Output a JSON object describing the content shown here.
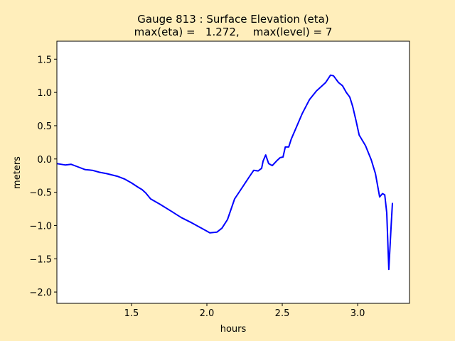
{
  "chart_data": {
    "type": "line",
    "title_line1": "Gauge 813 : Surface Elevation (eta)",
    "title_line2": "max(eta) =   1.272,    max(level) = 7",
    "xlabel": "hours",
    "ylabel": "meters",
    "xlim": [
      1.005,
      3.344
    ],
    "ylim": [
      -2.17,
      1.77
    ],
    "xticks": [
      1.5,
      2.0,
      2.5,
      3.0
    ],
    "xtick_labels": [
      "1.5",
      "2.0",
      "2.5",
      "3.0"
    ],
    "yticks": [
      1.5,
      1.0,
      0.5,
      0.0,
      -0.5,
      -1.0,
      -1.5,
      -2.0
    ],
    "ytick_labels": [
      "1.5",
      "1.0",
      "0.5",
      "0.0",
      "−0.5",
      "−1.0",
      "−1.5",
      "−2.0"
    ],
    "grid": false,
    "series": [
      {
        "name": "eta",
        "color": "#0000ff",
        "x": [
          1.005,
          1.06,
          1.1,
          1.146,
          1.193,
          1.24,
          1.288,
          1.335,
          1.406,
          1.453,
          1.5,
          1.547,
          1.57,
          1.594,
          1.627,
          1.689,
          1.76,
          1.83,
          1.9,
          1.972,
          2.02,
          2.066,
          2.1,
          2.137,
          2.184,
          2.231,
          2.278,
          2.311,
          2.34,
          2.363,
          2.373,
          2.39,
          2.41,
          2.434,
          2.467,
          2.486,
          2.505,
          2.52,
          2.543,
          2.56,
          2.6,
          2.632,
          2.68,
          2.726,
          2.788,
          2.82,
          2.84,
          2.873,
          2.9,
          2.925,
          2.948,
          2.967,
          2.99,
          3.01,
          3.052,
          3.09,
          3.118,
          3.146,
          3.165,
          3.18,
          3.193,
          3.207,
          3.222,
          3.231
        ],
        "y": [
          -0.07,
          -0.09,
          -0.08,
          -0.12,
          -0.16,
          -0.17,
          -0.2,
          -0.22,
          -0.26,
          -0.3,
          -0.36,
          -0.43,
          -0.46,
          -0.51,
          -0.6,
          -0.68,
          -0.78,
          -0.88,
          -0.96,
          -1.05,
          -1.11,
          -1.1,
          -1.04,
          -0.91,
          -0.6,
          -0.44,
          -0.28,
          -0.17,
          -0.18,
          -0.14,
          -0.03,
          0.06,
          -0.07,
          -0.1,
          -0.02,
          0.02,
          0.03,
          0.18,
          0.18,
          0.3,
          0.51,
          0.68,
          0.89,
          1.02,
          1.15,
          1.26,
          1.25,
          1.15,
          1.1,
          1.0,
          0.93,
          0.79,
          0.57,
          0.36,
          0.2,
          -0.01,
          -0.22,
          -0.57,
          -0.52,
          -0.54,
          -0.81,
          -1.66,
          -1.02,
          -0.66
        ]
      }
    ]
  }
}
